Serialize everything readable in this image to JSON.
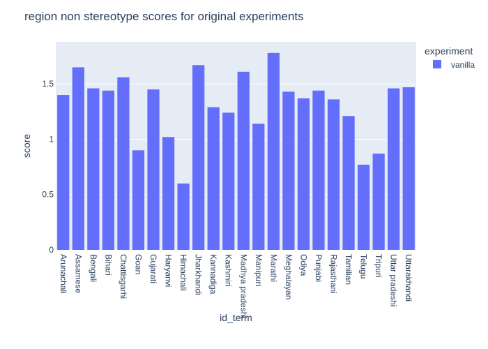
{
  "chart_data": {
    "type": "bar",
    "title": "region non stereotype scores for original experiments",
    "xlabel": "id_term",
    "ylabel": "score",
    "ylim": [
      0,
      1.88
    ],
    "yticks": [
      0,
      0.5,
      1,
      1.5
    ],
    "ytick_labels": [
      "0",
      "0.5",
      "1",
      "1.5"
    ],
    "grid": true,
    "legend": {
      "title": "experiment",
      "placement": "top-right"
    },
    "categories": [
      "Arunachali",
      "Assamese",
      "Bengali",
      "Bihari",
      "Chattisgarhi",
      "Goan",
      "Gujarati",
      "Haryanvi",
      "Himachali",
      "Jharkhandi",
      "Kannadiga",
      "Kashmiri",
      "Madhya pradeshi",
      "Manipuri",
      "Marathi",
      "Meghalayan",
      "Odiya",
      "Punjabi",
      "Rajasthani",
      "Tamilian",
      "Telugu",
      "Tripuri",
      "Uttar pradeshi",
      "Uttarakhandi"
    ],
    "series": [
      {
        "name": "vanilla",
        "color": "#636efa",
        "values": [
          1.4,
          1.65,
          1.46,
          1.44,
          1.56,
          0.9,
          1.45,
          1.02,
          0.6,
          1.67,
          1.29,
          1.24,
          1.61,
          1.14,
          1.78,
          1.43,
          1.37,
          1.44,
          1.36,
          1.21,
          0.77,
          0.87,
          1.46,
          1.47
        ]
      }
    ]
  }
}
